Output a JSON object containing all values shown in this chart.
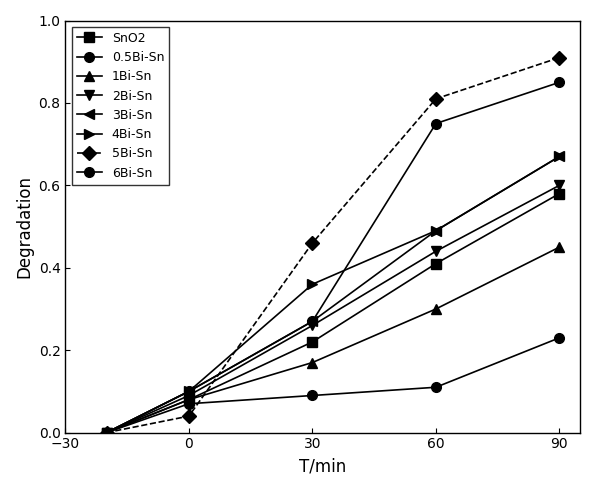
{
  "series": [
    {
      "label": "SnO2",
      "marker": "s",
      "linestyle": "-",
      "x": [
        -20,
        0,
        30,
        60,
        90
      ],
      "y": [
        0.0,
        0.08,
        0.22,
        0.41,
        0.58
      ]
    },
    {
      "label": "0.5Bi-Sn",
      "marker": "o",
      "linestyle": "-",
      "x": [
        -20,
        0,
        30,
        60,
        90
      ],
      "y": [
        0.0,
        0.07,
        0.09,
        0.11,
        0.23
      ]
    },
    {
      "label": "1Bi-Sn",
      "marker": "^",
      "linestyle": "-",
      "x": [
        -20,
        0,
        30,
        60,
        90
      ],
      "y": [
        0.0,
        0.08,
        0.17,
        0.3,
        0.45
      ]
    },
    {
      "label": "2Bi-Sn",
      "marker": "v",
      "linestyle": "-",
      "x": [
        -20,
        0,
        30,
        60,
        90
      ],
      "y": [
        0.0,
        0.09,
        0.26,
        0.44,
        0.6
      ]
    },
    {
      "label": "3Bi-Sn",
      "marker": "<",
      "linestyle": "-",
      "x": [
        -20,
        0,
        30,
        60,
        90
      ],
      "y": [
        0.0,
        0.1,
        0.27,
        0.49,
        0.67
      ]
    },
    {
      "label": "4Bi-Sn",
      "marker": ">",
      "linestyle": "-",
      "x": [
        -20,
        0,
        30,
        60,
        90
      ],
      "y": [
        0.0,
        0.1,
        0.36,
        0.49,
        0.67
      ]
    },
    {
      "label": "5Bi-Sn",
      "marker": "D",
      "linestyle": "--",
      "x": [
        -20,
        0,
        30,
        60,
        90
      ],
      "y": [
        0.0,
        0.04,
        0.46,
        0.81,
        0.91
      ]
    },
    {
      "label": "6Bi-Sn",
      "marker": "o",
      "linestyle": "-",
      "x": [
        -20,
        0,
        30,
        60,
        90
      ],
      "y": [
        0.0,
        0.1,
        0.27,
        0.75,
        0.85
      ]
    }
  ],
  "xlabel": "T/min",
  "ylabel": "Degradation",
  "xlim": [
    -30,
    95
  ],
  "ylim": [
    0.0,
    1.0
  ],
  "xticks": [
    -30,
    0,
    30,
    60,
    90
  ],
  "yticks": [
    0.0,
    0.2,
    0.4,
    0.6,
    0.8,
    1.0
  ],
  "legend_loc": "upper left",
  "color": "#000000",
  "markersize": 7,
  "linewidth": 1.2
}
